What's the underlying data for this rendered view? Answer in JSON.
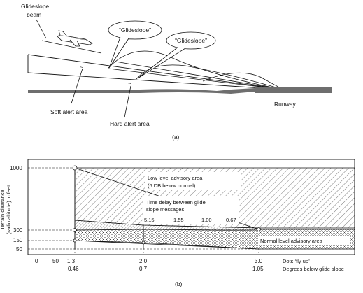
{
  "top": {
    "glideslope_beam_line1": "Glideslope",
    "glideslope_beam_line2": "beam",
    "callout_1": "“Glideslope”",
    "callout_2": "“Glideslope”",
    "soft_alert": "Soft alert area",
    "hard_alert": "Hard alert area",
    "runway": "Runway",
    "caption": "(a)",
    "tilde": "~"
  },
  "bottom": {
    "ylabel_line1": "Terrain clearance",
    "ylabel_line2": "(radio altitude) in feet",
    "low_level_line1": "Low level advisory area",
    "low_level_line2": "(6 DB below normal)",
    "time_delay_line1": "Time delay between glide",
    "time_delay_line2": "slope messages",
    "delays": [
      "5.15",
      "1.55",
      "1.00",
      "0.67"
    ],
    "normal_level": "Normal level advisory area",
    "x_ticks_top": [
      "0",
      "50",
      "1.3",
      "2.0",
      "3.0"
    ],
    "x_ticks_bottom": [
      "0.46",
      "0.7",
      "1.05"
    ],
    "y_ticks": [
      "1000",
      "300",
      "150",
      "50"
    ],
    "dots_label": "Dots ‘fly up’",
    "degrees_label": "Degrees below glide slope",
    "caption": "(b)"
  },
  "colors": {
    "ink": "#111111",
    "ground": "#6e6e6e",
    "hatch": "#444444"
  }
}
